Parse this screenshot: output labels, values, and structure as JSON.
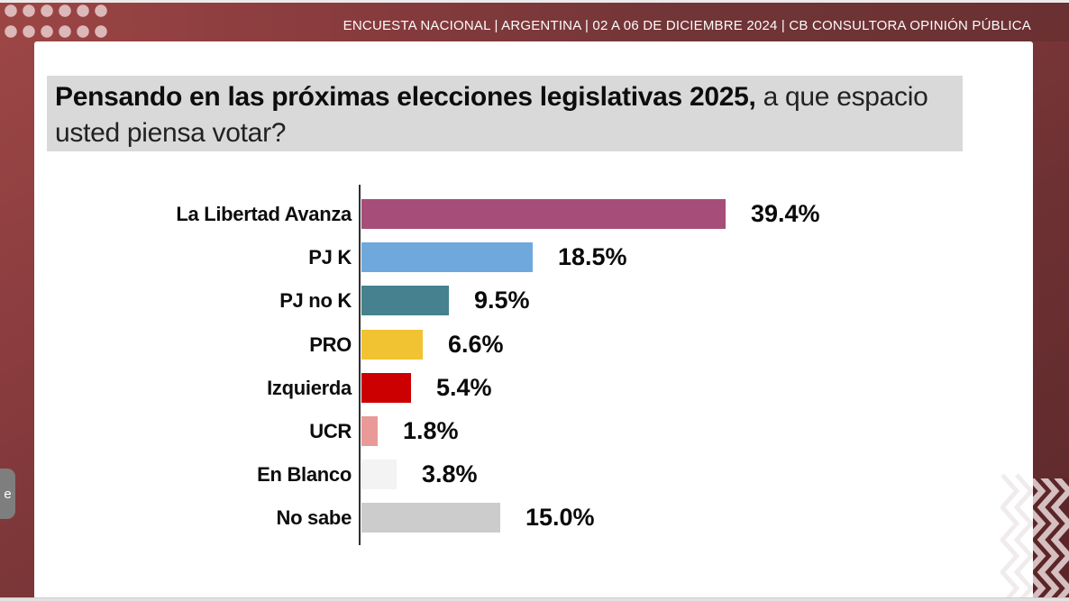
{
  "header": {
    "text": "ENCUESTA NACIONAL  |  ARGENTINA  | 02 A 06 DE DICIEMBRE 2024 | CB CONSULTORA OPINIÓN PÚBLICA"
  },
  "title": {
    "bold": "Pensando en las próximas elecciones legislativas 2025,",
    "regular": " a que espacio usted piensa votar?"
  },
  "side_tab": {
    "label": "e"
  },
  "chart_data": {
    "type": "bar",
    "orientation": "horizontal",
    "categories": [
      "La Libertad Avanza",
      "PJ K",
      "PJ no K",
      "PRO",
      "Izquierda",
      "UCR",
      "En Blanco",
      "No sabe"
    ],
    "values": [
      39.4,
      18.5,
      9.5,
      6.6,
      5.4,
      1.8,
      3.8,
      15.0
    ],
    "value_labels": [
      "39.4%",
      "18.5%",
      "9.5%",
      "6.6%",
      "5.4%",
      "1.8%",
      "3.8%",
      "15.0%"
    ],
    "bar_colors": [
      "#a64d79",
      "#6fa8dc",
      "#45818e",
      "#f1c232",
      "#cc0000",
      "#ea9999",
      "#f3f3f3",
      "#cccccc"
    ],
    "xlim": [
      0,
      45
    ],
    "grid": false,
    "legend": false,
    "value_label_position": "outside-end"
  },
  "theme": {
    "frame_color": "#7c3638",
    "frame_light": "#9e4747",
    "frame_dark": "#5c282b",
    "dots_color": "#dcb8b8",
    "title_bg": "#d9d9d9",
    "chevron_light": "#d5bfc0"
  }
}
